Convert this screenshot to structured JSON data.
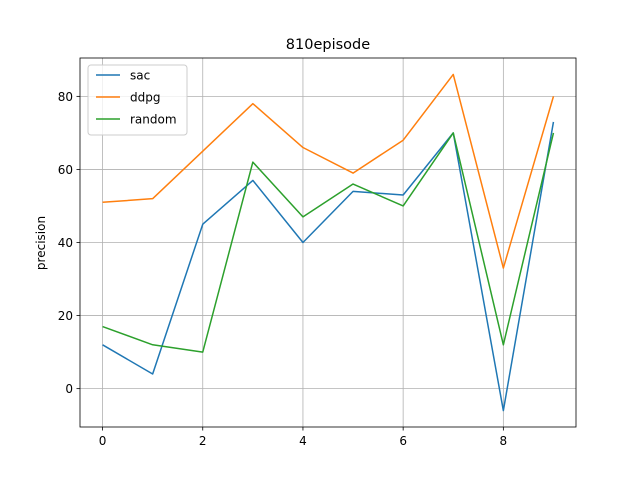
{
  "chart_data": {
    "type": "line",
    "title": "810episode",
    "xlabel": "",
    "ylabel": "precision",
    "x": [
      0,
      1,
      2,
      3,
      4,
      5,
      6,
      7,
      8,
      9
    ],
    "xlim": [
      -0.45,
      9.45
    ],
    "ylim": [
      -10.5,
      90.5
    ],
    "xticks": [
      0,
      2,
      4,
      6,
      8
    ],
    "yticks": [
      0,
      20,
      40,
      60,
      80
    ],
    "grid": true,
    "legend_position": "top-left",
    "series": [
      {
        "name": "sac",
        "color": "#1f77b4",
        "values": [
          12,
          4,
          45,
          57,
          40,
          54,
          53,
          70,
          -6,
          73
        ]
      },
      {
        "name": "ddpg",
        "color": "#ff7f0e",
        "values": [
          51,
          52,
          65,
          78,
          66,
          59,
          68,
          86,
          33,
          80
        ]
      },
      {
        "name": "random",
        "color": "#2ca02c",
        "values": [
          17,
          12,
          10,
          62,
          47,
          56,
          50,
          70,
          12,
          70
        ]
      }
    ]
  }
}
